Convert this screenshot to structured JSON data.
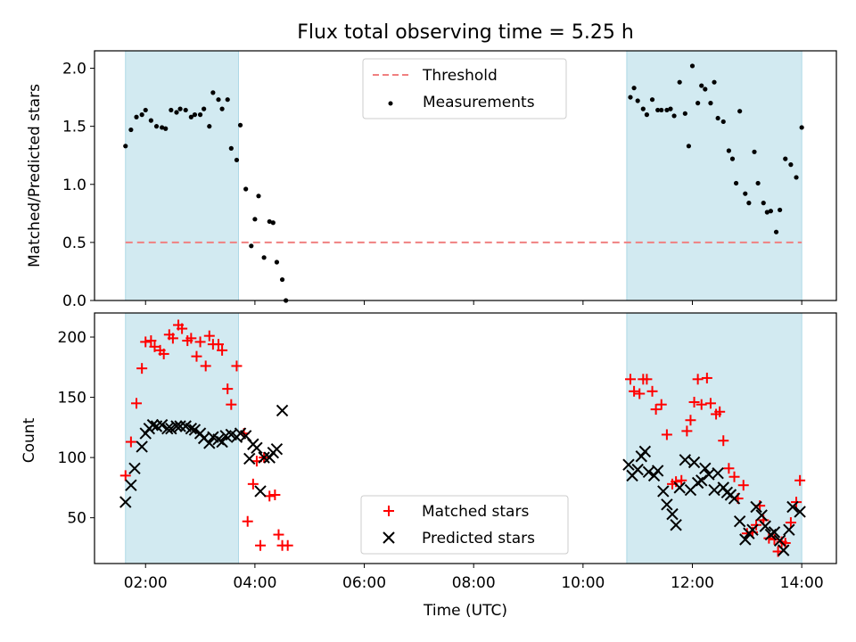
{
  "chart_data": [
    {
      "type": "scatter",
      "title": "Flux total observing time = 5.25 h",
      "xlabel": "",
      "ylabel": "Matched/Predicted stars",
      "xlim": [
        "01:04",
        "14:38"
      ],
      "ylim": [
        0,
        2.15
      ],
      "yticks": [
        0.0,
        0.5,
        1.0,
        1.5,
        2.0
      ],
      "ytick_labels": [
        "0.0",
        "0.5",
        "1.0",
        "1.5",
        "2.0"
      ],
      "shaded_spans": [
        [
          "01:38",
          "03:42"
        ],
        [
          "10:48",
          "14:00"
        ]
      ],
      "threshold": 0.5,
      "legend": {
        "position": "top-center",
        "entries": [
          "Threshold",
          "Measurements"
        ]
      },
      "colors": {
        "threshold": "#f08080",
        "measurements": "#000000",
        "span": "#add8e6"
      },
      "series": [
        {
          "name": "Measurements",
          "points": [
            [
              "01:38",
              1.33
            ],
            [
              "01:44",
              1.47
            ],
            [
              "01:50",
              1.58
            ],
            [
              "01:56",
              1.6
            ],
            [
              "02:00",
              1.64
            ],
            [
              "02:06",
              1.55
            ],
            [
              "02:12",
              1.5
            ],
            [
              "02:18",
              1.49
            ],
            [
              "02:22",
              1.48
            ],
            [
              "02:28",
              1.64
            ],
            [
              "02:34",
              1.62
            ],
            [
              "02:38",
              1.65
            ],
            [
              "02:44",
              1.64
            ],
            [
              "02:50",
              1.58
            ],
            [
              "02:54",
              1.6
            ],
            [
              "03:00",
              1.6
            ],
            [
              "03:04",
              1.65
            ],
            [
              "03:10",
              1.5
            ],
            [
              "03:14",
              1.79
            ],
            [
              "03:20",
              1.73
            ],
            [
              "03:24",
              1.65
            ],
            [
              "03:30",
              1.73
            ],
            [
              "03:34",
              1.31
            ],
            [
              "03:40",
              1.21
            ],
            [
              "03:44",
              1.51
            ],
            [
              "03:50",
              0.96
            ],
            [
              "03:56",
              0.47
            ],
            [
              "04:00",
              0.7
            ],
            [
              "04:04",
              0.9
            ],
            [
              "04:10",
              0.37
            ],
            [
              "04:16",
              0.68
            ],
            [
              "04:20",
              0.67
            ],
            [
              "04:24",
              0.33
            ],
            [
              "04:30",
              0.18
            ],
            [
              "04:34",
              0.0
            ],
            [
              "10:52",
              1.75
            ],
            [
              "10:56",
              1.83
            ],
            [
              "11:00",
              1.72
            ],
            [
              "11:06",
              1.65
            ],
            [
              "11:10",
              1.6
            ],
            [
              "11:16",
              1.73
            ],
            [
              "11:22",
              1.64
            ],
            [
              "11:26",
              1.64
            ],
            [
              "11:32",
              1.64
            ],
            [
              "11:36",
              1.65
            ],
            [
              "11:40",
              1.59
            ],
            [
              "11:46",
              1.88
            ],
            [
              "11:52",
              1.61
            ],
            [
              "11:56",
              1.33
            ],
            [
              "12:00",
              2.02
            ],
            [
              "12:06",
              1.7
            ],
            [
              "12:10",
              1.85
            ],
            [
              "12:14",
              1.82
            ],
            [
              "12:20",
              1.7
            ],
            [
              "12:24",
              1.88
            ],
            [
              "12:28",
              1.57
            ],
            [
              "12:34",
              1.54
            ],
            [
              "12:40",
              1.29
            ],
            [
              "12:44",
              1.22
            ],
            [
              "12:48",
              1.01
            ],
            [
              "12:52",
              1.63
            ],
            [
              "12:58",
              0.92
            ],
            [
              "13:02",
              0.84
            ],
            [
              "13:08",
              1.28
            ],
            [
              "13:12",
              1.01
            ],
            [
              "13:18",
              0.84
            ],
            [
              "13:22",
              0.76
            ],
            [
              "13:26",
              0.77
            ],
            [
              "13:32",
              0.59
            ],
            [
              "13:36",
              0.78
            ],
            [
              "13:42",
              1.22
            ],
            [
              "13:48",
              1.17
            ],
            [
              "13:54",
              1.06
            ],
            [
              "14:00",
              1.49
            ]
          ]
        }
      ]
    },
    {
      "type": "scatter",
      "title": "",
      "xlabel": "Time (UTC)",
      "ylabel": "Count",
      "xlim": [
        "01:04",
        "14:38"
      ],
      "ylim": [
        12,
        220
      ],
      "yticks": [
        50,
        100,
        150,
        200
      ],
      "ytick_labels": [
        "50",
        "100",
        "150",
        "200"
      ],
      "xticks": [
        "02:00",
        "04:00",
        "06:00",
        "08:00",
        "10:00",
        "12:00",
        "14:00"
      ],
      "shaded_spans": [
        [
          "01:38",
          "03:42"
        ],
        [
          "10:48",
          "14:00"
        ]
      ],
      "legend": {
        "position": "bottom-center",
        "entries": [
          "Matched stars",
          "Predicted stars"
        ]
      },
      "colors": {
        "matched": "#ff0000",
        "predicted": "#000000",
        "span": "#add8e6"
      },
      "series": [
        {
          "name": "Matched stars",
          "points": [
            [
              "01:38",
              85
            ],
            [
              "01:44",
              113
            ],
            [
              "01:50",
              145
            ],
            [
              "01:56",
              174
            ],
            [
              "02:00",
              196
            ],
            [
              "02:06",
              197
            ],
            [
              "02:10",
              192
            ],
            [
              "02:16",
              189
            ],
            [
              "02:20",
              186
            ],
            [
              "02:26",
              202
            ],
            [
              "02:30",
              199
            ],
            [
              "02:36",
              210
            ],
            [
              "02:40",
              207
            ],
            [
              "02:46",
              197
            ],
            [
              "02:50",
              199
            ],
            [
              "02:56",
              184
            ],
            [
              "03:00",
              196
            ],
            [
              "03:06",
              176
            ],
            [
              "03:10",
              201
            ],
            [
              "03:14",
              194
            ],
            [
              "03:20",
              194
            ],
            [
              "03:24",
              189
            ],
            [
              "03:30",
              157
            ],
            [
              "03:34",
              144
            ],
            [
              "03:40",
              176
            ],
            [
              "03:48",
              120
            ],
            [
              "03:52",
              47
            ],
            [
              "03:58",
              78
            ],
            [
              "04:02",
              97
            ],
            [
              "04:06",
              27
            ],
            [
              "04:10",
              100
            ],
            [
              "04:16",
              68
            ],
            [
              "04:22",
              69
            ],
            [
              "04:26",
              36
            ],
            [
              "04:30",
              27
            ],
            [
              "04:36",
              27
            ],
            [
              "10:52",
              165
            ],
            [
              "10:56",
              155
            ],
            [
              "11:02",
              153
            ],
            [
              "11:06",
              165
            ],
            [
              "11:10",
              165
            ],
            [
              "11:16",
              155
            ],
            [
              "11:20",
              140
            ],
            [
              "11:26",
              144
            ],
            [
              "11:32",
              119
            ],
            [
              "11:38",
              78
            ],
            [
              "11:42",
              80
            ],
            [
              "11:48",
              81
            ],
            [
              "11:54",
              122
            ],
            [
              "11:58",
              131
            ],
            [
              "12:02",
              146
            ],
            [
              "12:06",
              165
            ],
            [
              "12:10",
              144
            ],
            [
              "12:16",
              166
            ],
            [
              "12:20",
              145
            ],
            [
              "12:26",
              136
            ],
            [
              "12:30",
              138
            ],
            [
              "12:34",
              114
            ],
            [
              "12:40",
              91
            ],
            [
              "12:46",
              84
            ],
            [
              "12:50",
              66
            ],
            [
              "12:56",
              77
            ],
            [
              "13:00",
              37
            ],
            [
              "13:06",
              38
            ],
            [
              "13:10",
              44
            ],
            [
              "13:14",
              60
            ],
            [
              "13:18",
              48
            ],
            [
              "13:24",
              33
            ],
            [
              "13:30",
              32
            ],
            [
              "13:34",
              22
            ],
            [
              "13:38",
              30
            ],
            [
              "13:42",
              29
            ],
            [
              "13:48",
              46
            ],
            [
              "13:54",
              63
            ],
            [
              "13:58",
              81
            ]
          ]
        },
        {
          "name": "Predicted stars",
          "points": [
            [
              "01:38",
              63
            ],
            [
              "01:44",
              77
            ],
            [
              "01:48",
              91
            ],
            [
              "01:56",
              109
            ],
            [
              "02:00",
              120
            ],
            [
              "02:04",
              124
            ],
            [
              "02:08",
              127
            ],
            [
              "02:12",
              126
            ],
            [
              "02:18",
              127
            ],
            [
              "02:24",
              124
            ],
            [
              "02:28",
              124
            ],
            [
              "02:34",
              126
            ],
            [
              "02:38",
              126
            ],
            [
              "02:44",
              126
            ],
            [
              "02:50",
              124
            ],
            [
              "02:54",
              123
            ],
            [
              "03:00",
              120
            ],
            [
              "03:04",
              116
            ],
            [
              "03:10",
              112
            ],
            [
              "03:14",
              117
            ],
            [
              "03:20",
              115
            ],
            [
              "03:24",
              113
            ],
            [
              "03:28",
              118
            ],
            [
              "03:34",
              119
            ],
            [
              "03:40",
              117
            ],
            [
              "03:44",
              120
            ],
            [
              "03:50",
              118
            ],
            [
              "03:54",
              99
            ],
            [
              "03:58",
              111
            ],
            [
              "04:02",
              108
            ],
            [
              "04:06",
              72
            ],
            [
              "04:10",
              100
            ],
            [
              "04:16",
              100
            ],
            [
              "04:20",
              104
            ],
            [
              "04:24",
              107
            ],
            [
              "04:30",
              139
            ],
            [
              "10:50",
              94
            ],
            [
              "10:54",
              85
            ],
            [
              "11:00",
              90
            ],
            [
              "11:04",
              101
            ],
            [
              "11:08",
              105
            ],
            [
              "11:12",
              88
            ],
            [
              "11:18",
              85
            ],
            [
              "11:22",
              89
            ],
            [
              "11:28",
              72
            ],
            [
              "11:32",
              61
            ],
            [
              "11:38",
              53
            ],
            [
              "11:42",
              44
            ],
            [
              "11:46",
              75
            ],
            [
              "11:52",
              98
            ],
            [
              "11:58",
              73
            ],
            [
              "12:02",
              96
            ],
            [
              "12:06",
              79
            ],
            [
              "12:10",
              81
            ],
            [
              "12:14",
              91
            ],
            [
              "12:18",
              86
            ],
            [
              "12:24",
              73
            ],
            [
              "12:28",
              87
            ],
            [
              "12:34",
              75
            ],
            [
              "12:38",
              71
            ],
            [
              "12:42",
              69
            ],
            [
              "12:46",
              66
            ],
            [
              "12:52",
              47
            ],
            [
              "12:58",
              32
            ],
            [
              "13:02",
              37
            ],
            [
              "13:06",
              40
            ],
            [
              "13:10",
              59
            ],
            [
              "13:16",
              52
            ],
            [
              "13:20",
              43
            ],
            [
              "13:26",
              36
            ],
            [
              "13:30",
              38
            ],
            [
              "13:36",
              31
            ],
            [
              "13:40",
              23
            ],
            [
              "13:46",
              40
            ],
            [
              "13:50",
              59
            ],
            [
              "13:58",
              55
            ]
          ]
        }
      ]
    }
  ]
}
